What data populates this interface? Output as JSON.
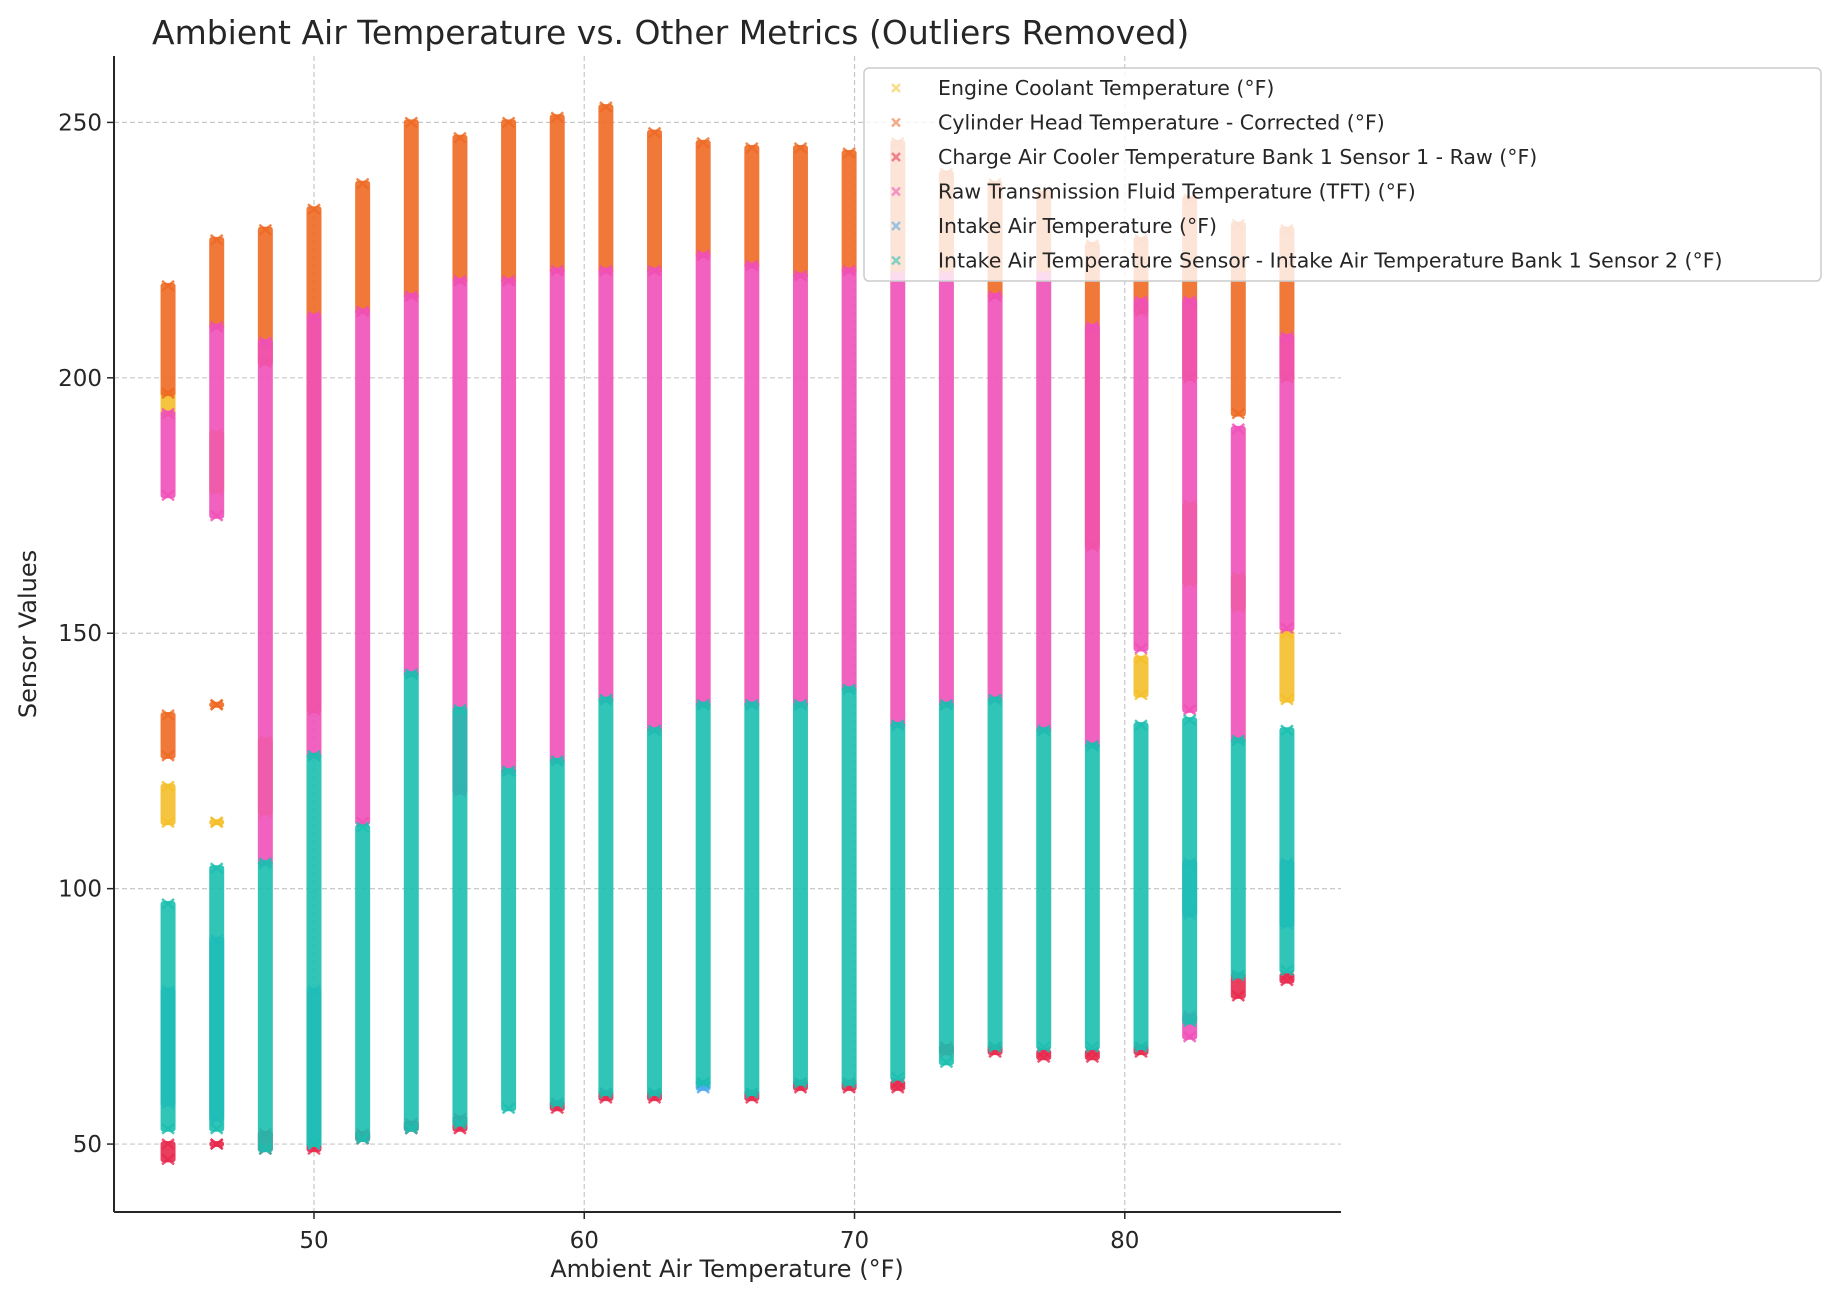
{
  "chart_data": {
    "type": "scatter",
    "title": "Ambient Air Temperature vs. Other Metrics (Outliers Removed)",
    "xlabel": "Ambient Air Temperature (°F)",
    "ylabel": "Sensor Values",
    "xlim": [
      42.6,
      88
    ],
    "ylim": [
      36.7,
      263
    ],
    "xticks": [
      50,
      60,
      70,
      80
    ],
    "yticks": [
      50,
      100,
      150,
      200,
      250
    ],
    "grid": true,
    "marker": "x",
    "legend_position": "top-right",
    "series": [
      {
        "name": "Engine Coolant Temperature (°F)",
        "color": "#f5bf2a"
      },
      {
        "name": "Cylinder Head Temperature - Corrected (°F)",
        "color": "#ee6a24"
      },
      {
        "name": "Charge Air Cooler Temperature Bank 1 Sensor 1 - Raw (°F)",
        "color": "#e8294e"
      },
      {
        "name": "Raw Transmission Fluid Temperature (TFT) (°F)",
        "color": "#f050b8"
      },
      {
        "name": "Intake Air Temperature (°F)",
        "color": "#4aa8f0"
      },
      {
        "name": "Intake Air Temperature Sensor - Intake Air Temperature Bank 1 Sensor 2 (°F)",
        "color": "#1bbfb0"
      }
    ],
    "columns": [
      {
        "x": 44.6,
        "ranges": [
          [
            0,
            113,
            120
          ],
          [
            0,
            193,
            197
          ],
          [
            1,
            197,
            218
          ],
          [
            1,
            126,
            134
          ],
          [
            3,
            177,
            193
          ],
          [
            2,
            47,
            50
          ],
          [
            4,
            58,
            80
          ],
          [
            5,
            53,
            97
          ]
        ]
      },
      {
        "x": 46.4,
        "ranges": [
          [
            1,
            210,
            227
          ],
          [
            3,
            173,
            210
          ],
          [
            0,
            178,
            189
          ],
          [
            0,
            113,
            113
          ],
          [
            1,
            136,
            136
          ],
          [
            2,
            50,
            50
          ],
          [
            5,
            53,
            104
          ],
          [
            4,
            55,
            90
          ]
        ]
      },
      {
        "x": 48.2,
        "ranges": [
          [
            1,
            203,
            229
          ],
          [
            3,
            105,
            207
          ],
          [
            0,
            115,
            129
          ],
          [
            2,
            49,
            52
          ],
          [
            5,
            49,
            105
          ]
        ]
      },
      {
        "x": 50.0,
        "ranges": [
          [
            1,
            135,
            233
          ],
          [
            3,
            126,
            212
          ],
          [
            2,
            49,
            50
          ],
          [
            5,
            50,
            126
          ],
          [
            4,
            50,
            80
          ]
        ]
      },
      {
        "x": 51.8,
        "ranges": [
          [
            1,
            213,
            238
          ],
          [
            3,
            113,
            213
          ],
          [
            2,
            51,
            52
          ],
          [
            5,
            51,
            112
          ]
        ]
      },
      {
        "x": 53.6,
        "ranges": [
          [
            1,
            216,
            250
          ],
          [
            3,
            142,
            216
          ],
          [
            2,
            53,
            54
          ],
          [
            5,
            53,
            142
          ]
        ]
      },
      {
        "x": 55.4,
        "ranges": [
          [
            1,
            219,
            247
          ],
          [
            3,
            119,
            219
          ],
          [
            2,
            53,
            55
          ],
          [
            5,
            54,
            135
          ]
        ]
      },
      {
        "x": 57.2,
        "ranges": [
          [
            1,
            219,
            250
          ],
          [
            3,
            123,
            219
          ],
          [
            5,
            57,
            123
          ]
        ]
      },
      {
        "x": 59.0,
        "ranges": [
          [
            1,
            221,
            251
          ],
          [
            3,
            125,
            221
          ],
          [
            2,
            57,
            58
          ],
          [
            5,
            58,
            125
          ]
        ]
      },
      {
        "x": 60.8,
        "ranges": [
          [
            1,
            221,
            253
          ],
          [
            3,
            137,
            221
          ],
          [
            2,
            59,
            60
          ],
          [
            5,
            60,
            137
          ]
        ]
      },
      {
        "x": 62.6,
        "ranges": [
          [
            1,
            221,
            248
          ],
          [
            3,
            131,
            221
          ],
          [
            2,
            59,
            60
          ],
          [
            5,
            60,
            131
          ]
        ]
      },
      {
        "x": 64.4,
        "ranges": [
          [
            1,
            224,
            246
          ],
          [
            3,
            136,
            224
          ],
          [
            4,
            61,
            62
          ],
          [
            5,
            62,
            136
          ]
        ]
      },
      {
        "x": 66.2,
        "ranges": [
          [
            1,
            222,
            245
          ],
          [
            3,
            136,
            222
          ],
          [
            2,
            59,
            60
          ],
          [
            5,
            60,
            136
          ]
        ]
      },
      {
        "x": 68.0,
        "ranges": [
          [
            1,
            220,
            245
          ],
          [
            3,
            136,
            220
          ],
          [
            2,
            61,
            62
          ],
          [
            5,
            62,
            136
          ]
        ]
      },
      {
        "x": 69.8,
        "ranges": [
          [
            1,
            221,
            244
          ],
          [
            3,
            139,
            221
          ],
          [
            2,
            61,
            62
          ],
          [
            5,
            62,
            139
          ]
        ]
      },
      {
        "x": 71.6,
        "ranges": [
          [
            1,
            220,
            246
          ],
          [
            3,
            132,
            220
          ],
          [
            2,
            61,
            62
          ],
          [
            5,
            63,
            132
          ]
        ]
      },
      {
        "x": 73.4,
        "ranges": [
          [
            1,
            220,
            240
          ],
          [
            3,
            136,
            220
          ],
          [
            2,
            68,
            69
          ],
          [
            5,
            66,
            136
          ]
        ]
      },
      {
        "x": 75.2,
        "ranges": [
          [
            1,
            216,
            238
          ],
          [
            3,
            137,
            216
          ],
          [
            2,
            68,
            69
          ],
          [
            5,
            69,
            137
          ]
        ]
      },
      {
        "x": 77.0,
        "ranges": [
          [
            1,
            220,
            236
          ],
          [
            3,
            131,
            220
          ],
          [
            2,
            67,
            68
          ],
          [
            5,
            69,
            131
          ]
        ]
      },
      {
        "x": 78.8,
        "ranges": [
          [
            1,
            167,
            226
          ],
          [
            3,
            128,
            210
          ],
          [
            2,
            67,
            68
          ],
          [
            5,
            69,
            128
          ]
        ]
      },
      {
        "x": 80.6,
        "ranges": [
          [
            1,
            213,
            227
          ],
          [
            3,
            147,
            215
          ],
          [
            0,
            138,
            145
          ],
          [
            2,
            68,
            69
          ],
          [
            5,
            69,
            132
          ]
        ]
      },
      {
        "x": 82.4,
        "ranges": [
          [
            1,
            200,
            235
          ],
          [
            3,
            135,
            215
          ],
          [
            0,
            160,
            175
          ],
          [
            3,
            71,
            75
          ],
          [
            5,
            74,
            133
          ],
          [
            4,
            95,
            105
          ]
        ]
      },
      {
        "x": 84.2,
        "ranges": [
          [
            1,
            193,
            230
          ],
          [
            3,
            129,
            190
          ],
          [
            0,
            155,
            161
          ],
          [
            2,
            79,
            83
          ],
          [
            5,
            83,
            129
          ]
        ]
      },
      {
        "x": 86.0,
        "ranges": [
          [
            1,
            200,
            229
          ],
          [
            3,
            151,
            208
          ],
          [
            0,
            137,
            150
          ],
          [
            2,
            82,
            83
          ],
          [
            5,
            84,
            131
          ],
          [
            4,
            93,
            105
          ]
        ]
      }
    ]
  }
}
